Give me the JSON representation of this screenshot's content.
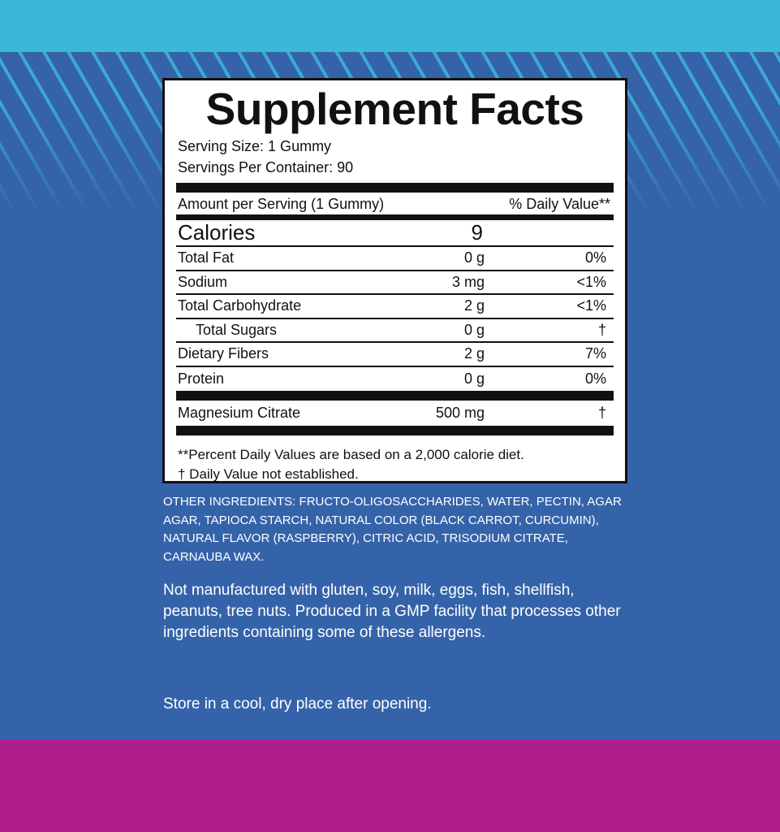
{
  "colors": {
    "top_band": "#3bb8d8",
    "background": "#3563a9",
    "bottom_band": "#b01e8e"
  },
  "label": {
    "title": "Supplement Facts",
    "serving_size": "Serving Size: 1 Gummy",
    "servings_per_container": "Servings Per Container: 90",
    "amount_header": "Amount per Serving (1 Gummy)",
    "dv_header": "% Daily Value**",
    "calories": {
      "name": "Calories",
      "amount": "9"
    },
    "rows": [
      {
        "name": "Total Fat",
        "amount": "0 g",
        "dv": "0%"
      },
      {
        "name": "Sodium",
        "amount": "3 mg",
        "dv": "<1%"
      },
      {
        "name": "Total Carbohydrate",
        "amount": "2 g",
        "dv": "<1%"
      },
      {
        "name": "Total Sugars",
        "amount": "0 g",
        "dv": "†"
      },
      {
        "name": "Dietary Fibers",
        "amount": "2 g",
        "dv": "7%"
      },
      {
        "name": "Protein",
        "amount": "0 g",
        "dv": "0%"
      }
    ],
    "active": {
      "name": "Magnesium Citrate",
      "amount": "500 mg",
      "dv": "†"
    },
    "footnote1": "**Percent Daily Values are based on a 2,000 calorie diet.",
    "footnote2": "† Daily Value not established."
  },
  "other_ingredients": {
    "label": "OTHER INGREDIENTS:",
    "text": " FRUCTO-OLIGOSACCHARIDES, WATER, PECTIN, AGAR AGAR, TAPIOCA STARCH, NATURAL COLOR (BLACK CARROT, CURCUMIN), NATURAL FLAVOR (RASPBERRY), CITRIC ACID, TRISODIUM CITRATE, CARNAUBA WAX."
  },
  "allergen_statement": "Not manufactured with gluten, soy, milk, eggs, fish, shellfish, peanuts, tree nuts. Produced in a GMP facility that processes other ingredients containing some of these allergens.",
  "storage": "Store in a cool, dry place after opening."
}
